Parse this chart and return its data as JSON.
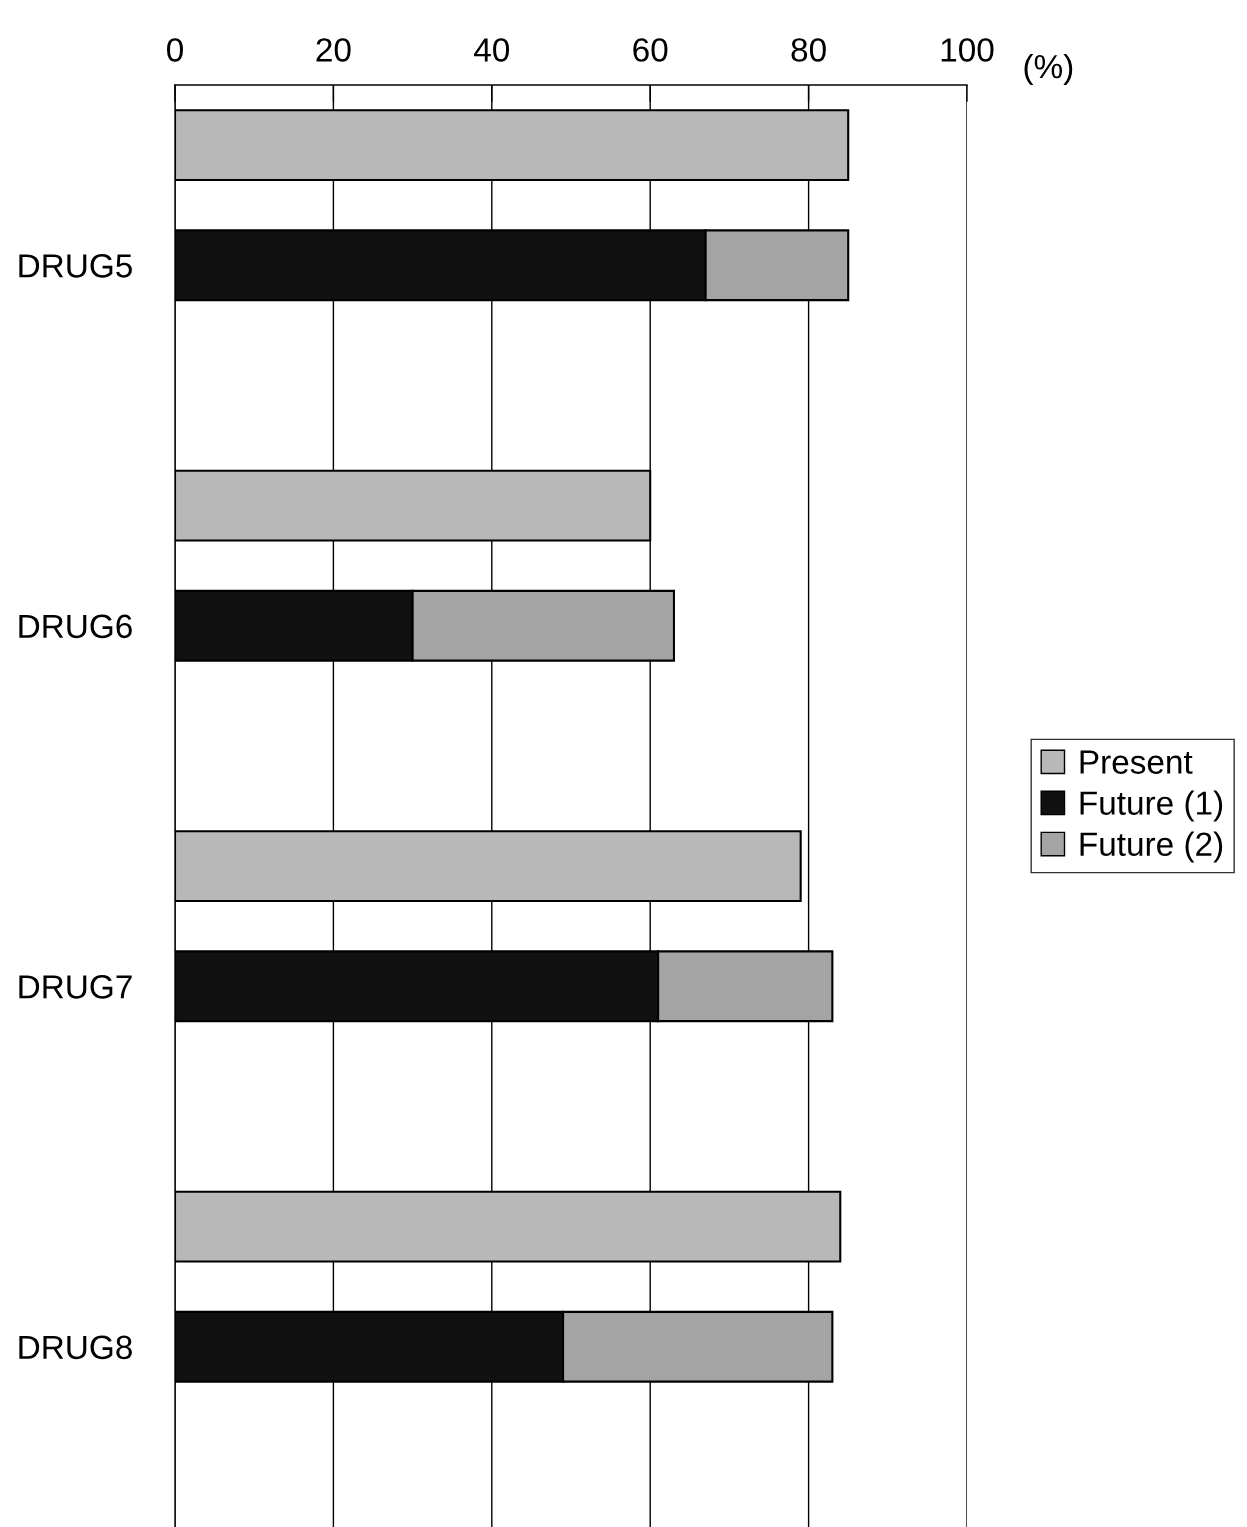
{
  "chart_data": {
    "type": "bar",
    "orientation": "horizontal",
    "stacked": true,
    "categories": [
      null,
      "DRUG5",
      null,
      null,
      "DRUG6",
      null,
      null,
      "DRUG7",
      null,
      null,
      "DRUG8",
      null
    ],
    "series": [
      {
        "name": "Present",
        "color": "#b8b8b8",
        "values": [
          85,
          null,
          null,
          60,
          null,
          null,
          79,
          null,
          null,
          84,
          null,
          null
        ]
      },
      {
        "name": "Future (1)",
        "color": "#111111",
        "values": [
          null,
          67,
          null,
          null,
          30,
          null,
          null,
          61,
          null,
          null,
          49,
          null
        ]
      },
      {
        "name": "Future (2)",
        "color": "#a4a4a4",
        "values": [
          null,
          18,
          null,
          null,
          33,
          null,
          null,
          22,
          null,
          null,
          34,
          null
        ]
      }
    ],
    "xlabel": "(%)",
    "xlim": [
      0,
      100
    ],
    "xticks": [
      0,
      20,
      40,
      60,
      80,
      100
    ],
    "grid": "x",
    "legend": "right"
  }
}
